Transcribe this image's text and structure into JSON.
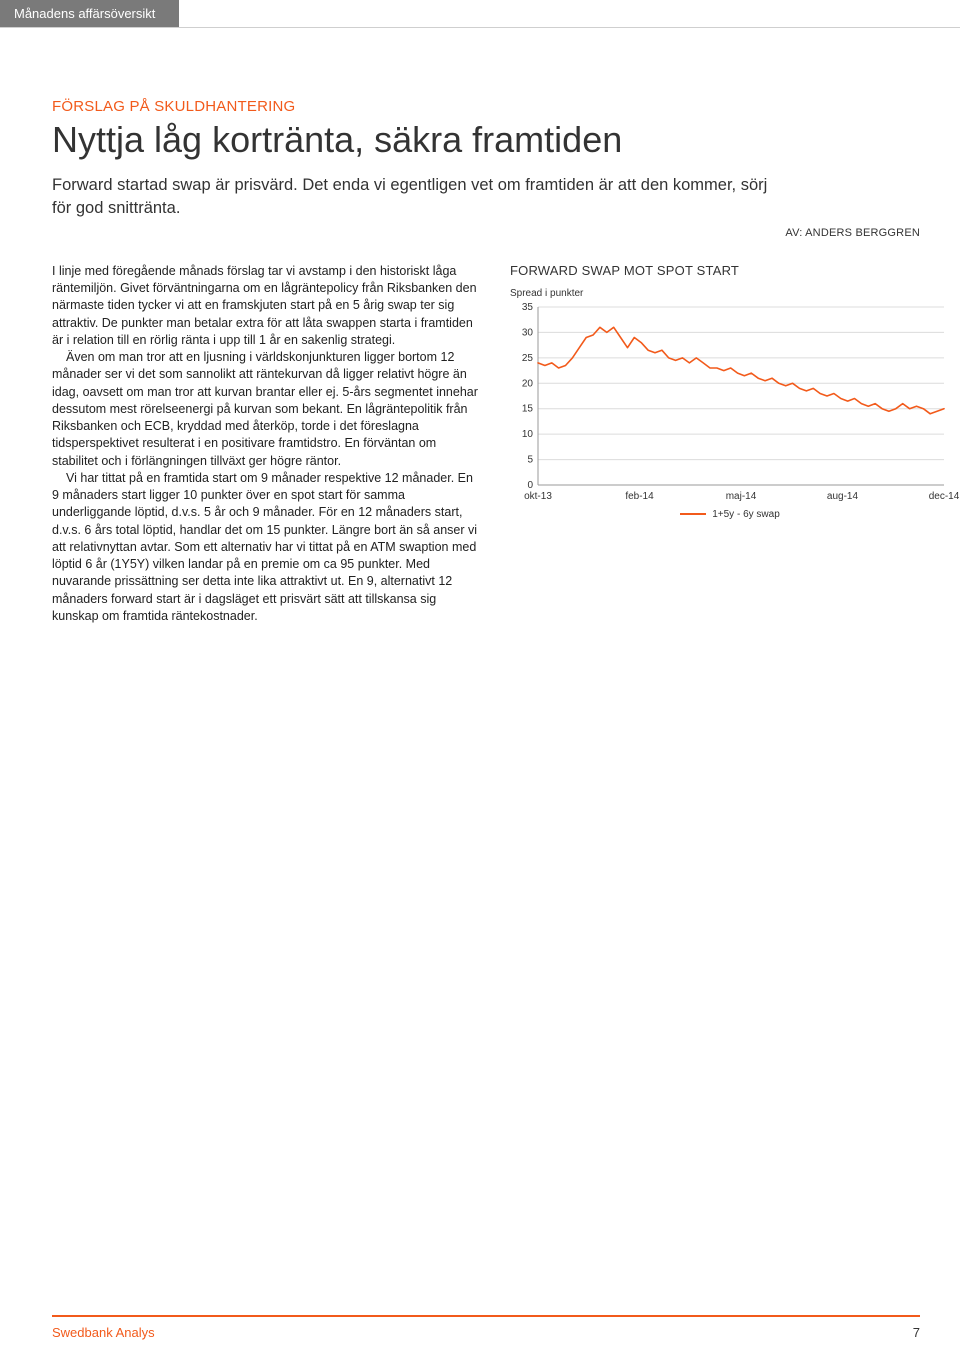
{
  "header": {
    "tab": "Månadens affärsöversikt"
  },
  "article": {
    "kicker": "FÖRSLAG PÅ SKULDHANTERING",
    "headline": "Nyttja låg kortränta, säkra framtiden",
    "lede": "Forward startad swap är prisvärd. Det enda vi egentligen vet om framtiden är att den kommer, sörj för god snittränta.",
    "byline": "AV: ANDERS BERGGREN",
    "p1": "I linje med föregående månads förslag tar vi avstamp i den historiskt låga räntemiljön. Givet förväntningarna om en lågräntepolicy från Riksbanken den närmaste tiden tycker vi att en framskjuten start på en 5 årig swap ter sig attraktiv. De punkter man betalar extra för att låta swappen starta i framtiden är i relation till en rörlig ränta i upp till 1 år en sakenlig strategi.",
    "p2": "Även om man tror att en ljusning i världskonjunkturen ligger bortom 12 månader ser vi det som sannolikt att räntekurvan då ligger relativt högre än idag, oavsett om man tror att kurvan brantar eller ej. 5-års segmentet innehar dessutom mest rörelseenergi på kurvan som bekant. En lågräntepolitik från Riksbanken och ECB, kryddad med återköp, torde i det föreslagna tidsperspektivet resulterat i en positivare framtidstro. En förväntan om stabilitet och i förlängningen tillväxt ger högre räntor.",
    "p3": "Vi har tittat på en framtida start om 9 månader respektive 12 månader. En 9 månaders start ligger 10 punkter över en spot start för samma underliggande löptid, d.v.s. 5 år och 9 månader. För en 12 månaders start, d.v.s. 6 års total löptid, handlar det om 15 punkter. Längre bort än så anser vi att relativnyttan avtar. Som ett alternativ har vi tittat på en ATM swaption med löptid 6 år (1Y5Y) vilken landar på en premie om ca 95 punkter. Med nuvarande prissättning ser detta inte lika attraktivt ut. En 9, alternativt 12 månaders forward start är i dagsläget ett prisvärt sätt att tillskansa sig kunskap om framtida räntekostnader."
  },
  "chart": {
    "title": "FORWARD SWAP MOT SPOT START",
    "subtitle": "Spread i punkter",
    "legend": "1+5y - 6y swap",
    "type": "line",
    "line_color": "#f25a1b",
    "background_color": "#ffffff",
    "grid_color": "#dcdcdc",
    "axis_color": "#999999",
    "ylim": [
      0,
      35
    ],
    "ytick_step": 5,
    "yticks": [
      0,
      5,
      10,
      15,
      20,
      25,
      30,
      35
    ],
    "xticks": [
      "okt-13",
      "feb-14",
      "maj-14",
      "aug-14",
      "dec-14"
    ],
    "values": [
      24,
      23.5,
      24,
      23,
      23.5,
      25,
      27,
      29,
      29.5,
      31,
      30,
      31,
      29,
      27,
      29,
      28,
      26.5,
      26,
      26.5,
      25,
      24.5,
      25,
      24,
      25,
      24,
      23,
      23,
      22.5,
      23,
      22,
      21.5,
      22,
      21,
      20.5,
      21,
      20,
      19.5,
      20,
      19,
      18.5,
      19,
      18,
      17.5,
      18,
      17,
      16.5,
      17,
      16,
      15.5,
      16,
      15,
      14.5,
      15,
      16,
      15,
      15.5,
      15,
      14,
      14.5,
      15
    ]
  },
  "footer": {
    "brand": "Swedbank Analys",
    "page": "7"
  },
  "colors": {
    "orange": "#f25a1b",
    "grey_tab": "#7a7a7a"
  }
}
